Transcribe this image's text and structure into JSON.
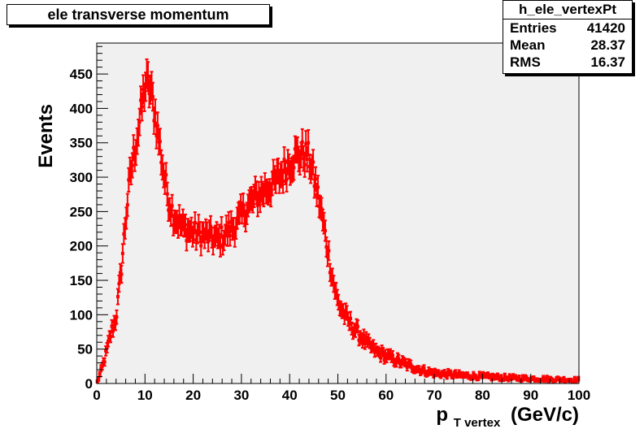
{
  "chart_data": {
    "type": "scatter",
    "title": "ele transverse momentum",
    "xlabel_main": "p",
    "xlabel_sub": "T vertex",
    "xlabel_unit": "(GeV/c)",
    "ylabel": "Events",
    "xlim": [
      0,
      100
    ],
    "ylim": [
      0,
      495
    ],
    "x_ticks": [
      0,
      10,
      20,
      30,
      40,
      50,
      60,
      70,
      80,
      90,
      100
    ],
    "y_ticks": [
      0,
      50,
      100,
      150,
      200,
      250,
      300,
      350,
      400,
      450
    ],
    "x_minor_step": 2,
    "y_minor_step": 10,
    "grid": false,
    "bin_width": 0.25,
    "marker_color": "#ff0000",
    "line_color": "#0000ff",
    "frame_fill": "#f0f0f0",
    "curve_shape": [
      [
        0,
        0
      ],
      [
        1,
        20
      ],
      [
        2,
        45
      ],
      [
        3,
        75
      ],
      [
        4,
        95
      ],
      [
        5,
        160
      ],
      [
        6,
        240
      ],
      [
        7,
        305
      ],
      [
        8,
        345
      ],
      [
        9,
        385
      ],
      [
        10,
        435
      ],
      [
        11,
        430
      ],
      [
        12,
        395
      ],
      [
        13,
        350
      ],
      [
        14,
        300
      ],
      [
        15,
        265
      ],
      [
        16,
        245
      ],
      [
        18,
        225
      ],
      [
        20,
        220
      ],
      [
        22,
        215
      ],
      [
        24,
        212
      ],
      [
        25,
        208
      ],
      [
        27,
        220
      ],
      [
        29,
        232
      ],
      [
        31,
        255
      ],
      [
        33,
        270
      ],
      [
        35,
        283
      ],
      [
        37,
        292
      ],
      [
        39,
        312
      ],
      [
        41,
        330
      ],
      [
        43,
        335
      ],
      [
        44,
        330
      ],
      [
        45,
        300
      ],
      [
        46,
        270
      ],
      [
        47,
        232
      ],
      [
        48,
        190
      ],
      [
        49,
        150
      ],
      [
        50,
        118
      ],
      [
        52,
        92
      ],
      [
        54,
        75
      ],
      [
        56,
        58
      ],
      [
        58,
        46
      ],
      [
        60,
        40
      ],
      [
        62,
        34
      ],
      [
        64,
        28
      ],
      [
        66,
        23
      ],
      [
        68,
        18
      ],
      [
        70,
        15
      ],
      [
        75,
        12
      ],
      [
        80,
        10
      ],
      [
        85,
        8
      ],
      [
        90,
        7
      ],
      [
        95,
        6
      ],
      [
        100,
        5
      ]
    ]
  },
  "stats": {
    "name": "h_ele_vertexPt",
    "rows": [
      {
        "label": "Entries",
        "value": "41420"
      },
      {
        "label": "Mean",
        "value": "28.37"
      },
      {
        "label": "RMS",
        "value": "16.37"
      }
    ]
  }
}
